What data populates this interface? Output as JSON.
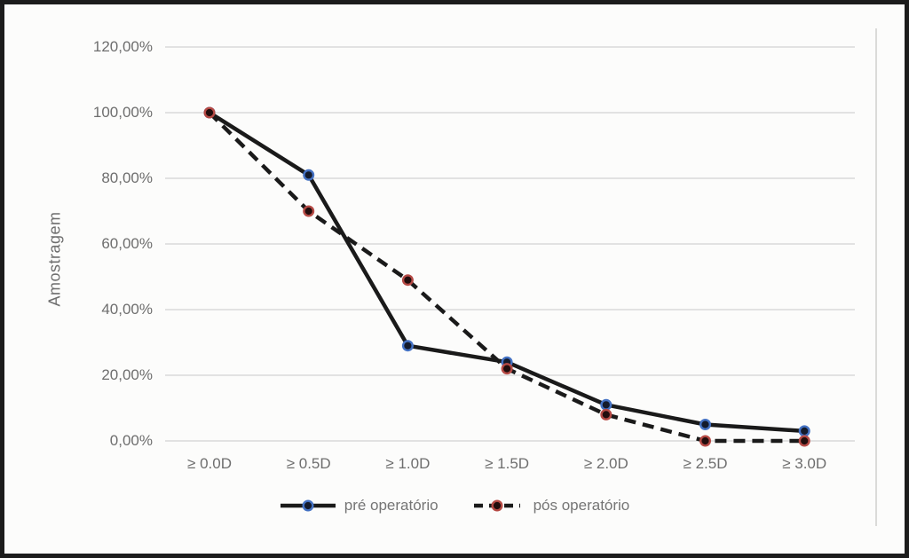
{
  "figure": {
    "ylabel_title": "Amostragem"
  },
  "chart_data": {
    "type": "line",
    "title": "",
    "xlabel": "",
    "ylabel": "Amostragem",
    "unit": "%",
    "categories": [
      "≥ 0.0D",
      "≥ 0.5D",
      "≥ 1.0D",
      "≥ 1.5D",
      "≥ 2.0D",
      "≥ 2.5D",
      "≥ 3.0D"
    ],
    "series": [
      {
        "name": "pré operatório",
        "values": [
          100,
          81,
          29,
          24,
          11,
          5,
          3
        ],
        "line_style": "solid",
        "line_color": "#1a1a1a",
        "marker_ring_color": "#4472c4",
        "marker_fill": "#141b2c"
      },
      {
        "name": "pós operatório",
        "values": [
          100,
          70,
          49,
          22,
          8,
          0,
          0
        ],
        "line_style": "dashed",
        "line_color": "#1a1a1a",
        "marker_ring_color": "#b64a45",
        "marker_fill": "#220d0d"
      }
    ],
    "y_axis": {
      "min": 0,
      "max": 120,
      "ticks": [
        {
          "value": 0,
          "label": "0,00%"
        },
        {
          "value": 20,
          "label": "20,00%"
        },
        {
          "value": 40,
          "label": "40,00%"
        },
        {
          "value": 60,
          "label": "60,00%"
        },
        {
          "value": 80,
          "label": "80,00%"
        },
        {
          "value": 100,
          "label": "100,00%"
        },
        {
          "value": 120,
          "label": "120,00%"
        }
      ]
    },
    "grid": "horizontal",
    "legend_position": "bottom",
    "colors": {
      "grid": "#d9d9d9",
      "edge_line": "#dbdbd9",
      "axis_text": "#6e6e6e",
      "legend_text": "#757575",
      "background": "#fcfcfb",
      "frame_border": "#1c1c1c"
    }
  }
}
